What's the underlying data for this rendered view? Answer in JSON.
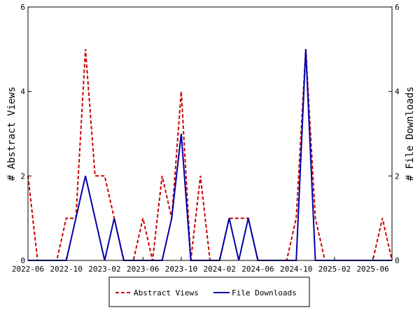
{
  "chart_data": {
    "type": "line",
    "x": [
      "2022-06",
      "2022-07",
      "2022-08",
      "2022-09",
      "2022-10",
      "2022-11",
      "2022-12",
      "2023-01",
      "2023-02",
      "2023-03",
      "2023-04",
      "2023-05",
      "2023-06",
      "2023-07",
      "2023-08",
      "2023-09",
      "2023-10",
      "2023-11",
      "2023-12",
      "2024-01",
      "2024-02",
      "2024-03",
      "2024-04",
      "2024-05",
      "2024-06",
      "2024-07",
      "2024-08",
      "2024-09",
      "2024-10",
      "2024-11",
      "2024-12",
      "2025-01",
      "2025-02",
      "2025-03",
      "2025-04",
      "2025-05",
      "2025-06",
      "2025-07",
      "2025-08"
    ],
    "x_ticks": [
      "2022-06",
      "2022-10",
      "2023-02",
      "2023-06",
      "2023-10",
      "2024-02",
      "2024-06",
      "2024-10",
      "2025-02",
      "2025-06"
    ],
    "series": [
      {
        "name": "Abstract Views",
        "axis": "left",
        "color": "#cc0000",
        "style": "dashed",
        "values": [
          2,
          0,
          0,
          0,
          1,
          1,
          5,
          2,
          2,
          1,
          0,
          0,
          1,
          0,
          2,
          1,
          4,
          0,
          2,
          0,
          0,
          1,
          1,
          1,
          0,
          0,
          0,
          0,
          1,
          5,
          1,
          0,
          0,
          0,
          0,
          0,
          0,
          1,
          0
        ]
      },
      {
        "name": "File Downloads",
        "axis": "right",
        "color": "#0000aa",
        "style": "solid",
        "values": [
          0,
          0,
          0,
          0,
          0,
          1,
          2,
          1,
          0,
          1,
          0,
          0,
          0,
          0,
          0,
          1,
          3,
          0,
          0,
          0,
          0,
          1,
          0,
          1,
          0,
          0,
          0,
          0,
          0,
          5,
          0,
          0,
          0,
          0,
          0,
          0,
          0,
          0,
          0
        ]
      }
    ],
    "ylabel": "# Abstract Views",
    "y2label": "# File Downloads",
    "ylim": [
      0,
      6
    ],
    "y2lim": [
      0,
      6
    ],
    "yticks": [
      "0",
      "2",
      "4",
      "6"
    ],
    "y2ticks": [
      "0",
      "2",
      "4",
      "6"
    ],
    "grid": false,
    "legend_position": "bottom-center"
  }
}
